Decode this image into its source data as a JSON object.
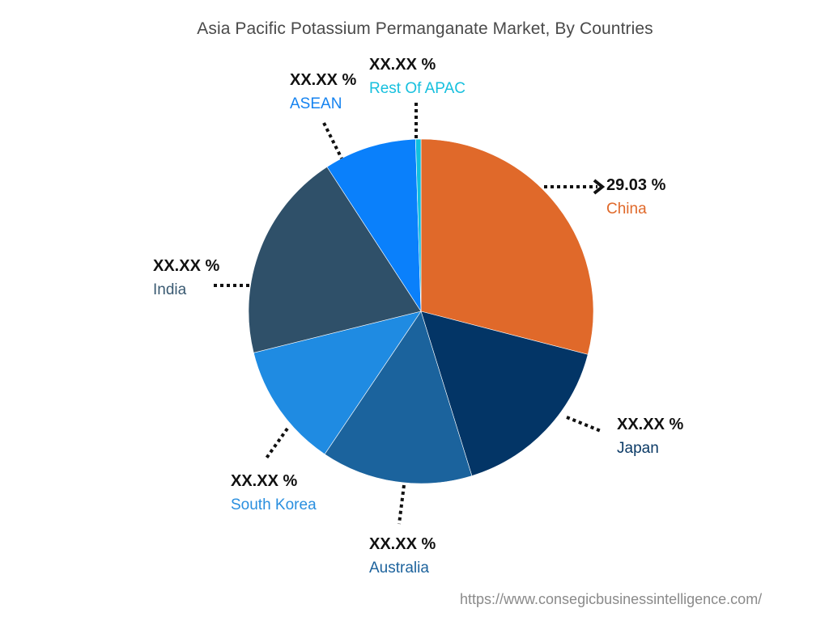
{
  "chart_data": {
    "type": "pie",
    "title": "Asia Pacific Potassium Permanganate Market, By Countries",
    "start_angle_deg": 0,
    "direction": "clockwise",
    "series": [
      {
        "name": "China",
        "value": 29.03,
        "label": "29.03 %",
        "color": "#E0692A",
        "label_color": "#E0692A"
      },
      {
        "name": "Japan",
        "value": 16.2,
        "label": "XX.XX %",
        "color": "#033566",
        "label_color": "#0B3A66"
      },
      {
        "name": "Australia",
        "value": 14.2,
        "label": "XX.XX %",
        "color": "#1B639D",
        "label_color": "#1D639D"
      },
      {
        "name": "South Korea",
        "value": 11.7,
        "label": "XX.XX %",
        "color": "#1F8BE2",
        "label_color": "#2A8FDF"
      },
      {
        "name": "India",
        "value": 19.7,
        "label": "XX.XX %",
        "color": "#2F5069",
        "label_color": "#3A5A72"
      },
      {
        "name": "ASEAN",
        "value": 8.67,
        "label": "XX.XX %",
        "color": "#0A80FB",
        "label_color": "#1583F0"
      },
      {
        "name": "Rest Of APAC",
        "value": 0.5,
        "label": "XX.XX %",
        "color": "#10C0DF",
        "label_color": "#17C0DE"
      }
    ],
    "legend": "none (callout labels)",
    "note": "Only China value is labeled; other values shown as XX.XX % and estimated from slice angles"
  },
  "footer": {
    "url": "https://www.consegicbusinessintelligence.com/"
  }
}
